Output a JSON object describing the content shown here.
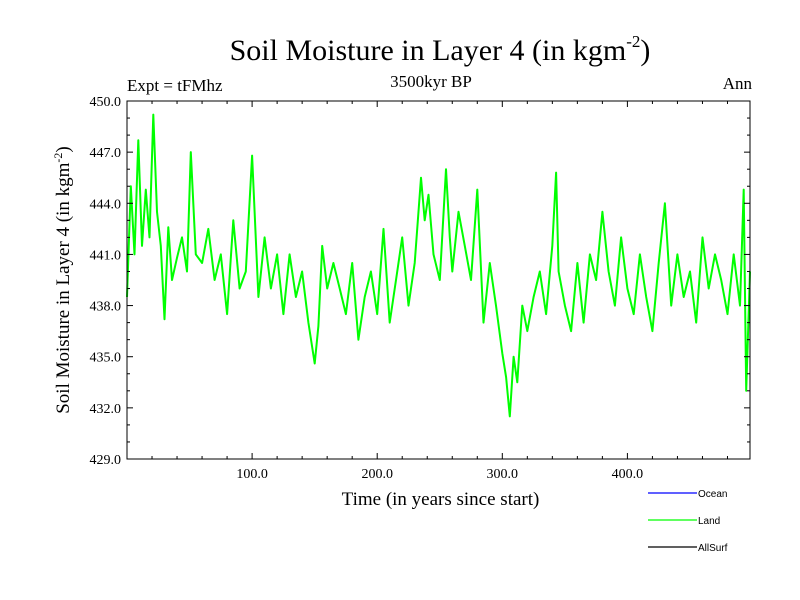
{
  "chart_data": {
    "type": "line",
    "title_main": "Soil Moisture in Layer 4 (in kgm",
    "title_sup": "-2",
    "title_end": ")",
    "subtitle": "3500kyr BP",
    "left_label": "Expt = tFMhz",
    "right_label": "Ann",
    "xlabel": "Time (in years since start)",
    "ylabel_main": "Soil Moisture in Layer 4 (in kgm",
    "ylabel_sup": "-2",
    "ylabel_end": ")",
    "xlim": [
      0,
      498
    ],
    "ylim": [
      429.0,
      450.0
    ],
    "xticks": [
      100,
      200,
      300,
      400
    ],
    "xtick_labels": [
      "100.0",
      "200.0",
      "300.0",
      "400.0"
    ],
    "yticks": [
      429,
      432,
      435,
      438,
      441,
      444,
      447,
      450
    ],
    "ytick_labels": [
      "429.0",
      "432.0",
      "435.0",
      "438.0",
      "441.0",
      "444.0",
      "447.0",
      "450.0"
    ],
    "legend": [
      {
        "name": "Ocean",
        "color": "#0000ff"
      },
      {
        "name": "Land",
        "color": "#00ff00"
      },
      {
        "name": "AllSurf",
        "color": "#000000"
      }
    ],
    "series": [
      {
        "name": "Land",
        "color": "#00ff00",
        "x": [
          0,
          3,
          6,
          9,
          12,
          15,
          18,
          21,
          24,
          27,
          30,
          33,
          36,
          40,
          44,
          48,
          51,
          55,
          60,
          65,
          70,
          75,
          80,
          85,
          90,
          95,
          100,
          105,
          110,
          115,
          120,
          125,
          130,
          135,
          140,
          145,
          150,
          153,
          156,
          160,
          165,
          170,
          175,
          180,
          185,
          190,
          195,
          200,
          205,
          210,
          215,
          220,
          225,
          230,
          235,
          238,
          241,
          245,
          250,
          255,
          258,
          260,
          265,
          270,
          275,
          280,
          285,
          290,
          295,
          300,
          303,
          306,
          309,
          312,
          316,
          320,
          325,
          330,
          335,
          340,
          343,
          345,
          350,
          355,
          360,
          365,
          370,
          375,
          380,
          385,
          390,
          395,
          400,
          405,
          410,
          415,
          420,
          425,
          430,
          435,
          440,
          445,
          450,
          455,
          460,
          465,
          470,
          475,
          480,
          485,
          490,
          493,
          495,
          498
        ],
        "values": [
          438.5,
          445.0,
          441.0,
          447.7,
          441.5,
          444.8,
          442.0,
          449.2,
          443.5,
          441.5,
          437.2,
          442.6,
          439.5,
          440.8,
          442.0,
          440.0,
          447.0,
          441.0,
          440.5,
          442.5,
          439.5,
          441.0,
          437.5,
          443.0,
          439.0,
          440.0,
          446.8,
          438.5,
          442.0,
          439.0,
          441.0,
          437.5,
          441.0,
          438.5,
          440.0,
          437.0,
          434.6,
          436.8,
          441.5,
          439.0,
          440.5,
          439.0,
          437.5,
          440.5,
          436.0,
          438.5,
          440.0,
          437.5,
          442.5,
          437.0,
          439.5,
          442.0,
          438.0,
          440.5,
          445.5,
          443.0,
          444.5,
          441.0,
          439.5,
          446.0,
          442.0,
          440.0,
          443.5,
          441.5,
          439.5,
          444.8,
          437.0,
          440.5,
          438.0,
          435.2,
          433.8,
          431.5,
          435.0,
          433.5,
          438.0,
          436.5,
          438.5,
          440.0,
          437.5,
          441.5,
          445.8,
          440.0,
          438.0,
          436.5,
          440.5,
          437.0,
          441.0,
          439.5,
          443.5,
          440.0,
          438.0,
          442.0,
          439.0,
          437.5,
          441.0,
          438.5,
          436.5,
          440.5,
          444.0,
          438.0,
          441.0,
          438.5,
          440.0,
          437.0,
          442.0,
          439.0,
          441.0,
          439.5,
          437.5,
          441.0,
          438.0,
          444.8,
          433.0,
          440.0
        ]
      }
    ]
  }
}
